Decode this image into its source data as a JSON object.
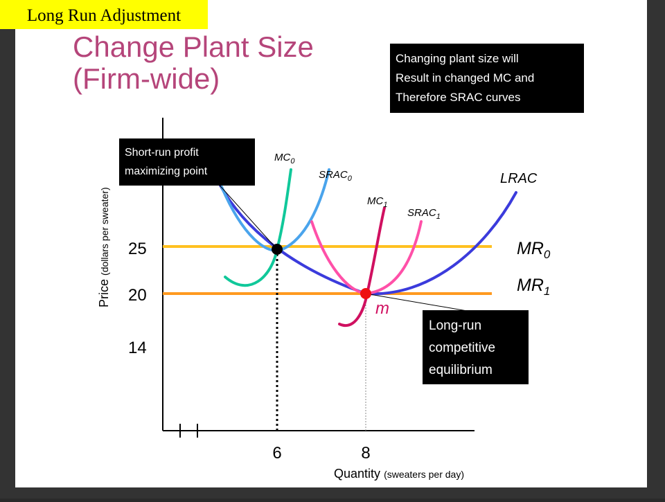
{
  "banner": "Long Run Adjustment",
  "title": [
    "Change Plant Size",
    "(Firm-wide)"
  ],
  "callouts": {
    "plant_size": [
      "Changing plant size will",
      "Result in changed MC and",
      "Therefore SRAC curves"
    ],
    "short_run": [
      "Short-run profit",
      "maximizing point"
    ],
    "long_run": [
      "Long-run",
      "competitive",
      "equilibrium"
    ]
  },
  "y_axis": {
    "label": "Price",
    "unit": "(dollars per sweater)",
    "ticks": [
      25,
      20,
      14
    ]
  },
  "x_axis": {
    "label": "Quantity",
    "unit": "(sweaters per day)",
    "ticks": [
      6,
      8
    ]
  },
  "curves": {
    "mc0": {
      "base": "MC",
      "sub": "0"
    },
    "srac0": {
      "base": "SRAC",
      "sub": "0"
    },
    "mc1": {
      "base": "MC",
      "sub": "1"
    },
    "srac1": {
      "base": "SRAC",
      "sub": "1"
    },
    "lrac": {
      "base": "LRAC"
    },
    "mr0": {
      "base": "MR",
      "sub": "0"
    },
    "mr1": {
      "base": "MR",
      "sub": "1"
    }
  },
  "point_label": "m"
}
